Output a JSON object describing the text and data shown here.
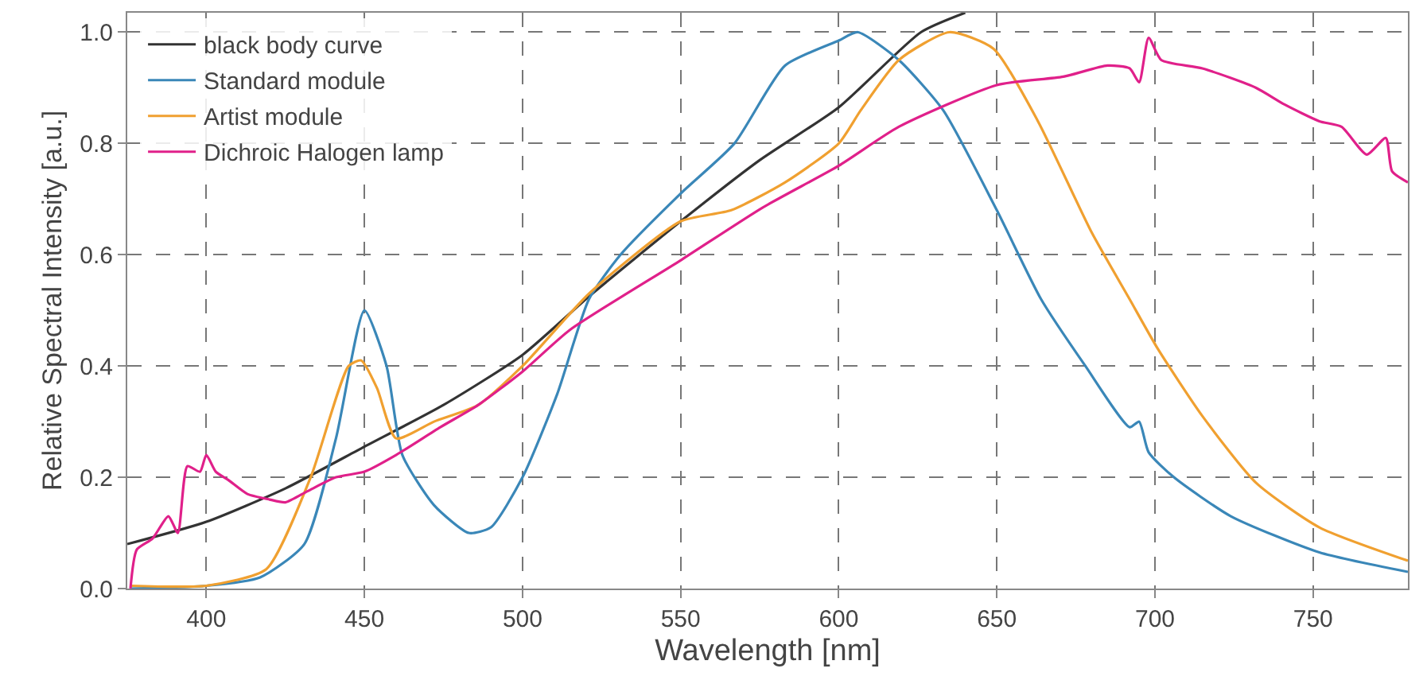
{
  "chart_data": {
    "type": "line",
    "xlabel": "Wavelength [nm]",
    "ylabel": "Relative Spectral Intensity [a.u.]",
    "xlim": [
      375,
      780
    ],
    "xticks": [
      400,
      450,
      500,
      550,
      600,
      650,
      700,
      750
    ],
    "ylim": [
      0,
      1.035
    ],
    "yticks": [
      {
        "value": 0,
        "label": "0.0"
      },
      0.2,
      0.4,
      0.6,
      0.8,
      {
        "value": 1,
        "label": "1.0"
      }
    ],
    "grid": true,
    "legend": "top left",
    "line_style": "solid",
    "marker": "none",
    "series": [
      {
        "name": "black body curve",
        "color": "#333333",
        "x": [
          375,
          400,
          425,
          450,
          475,
          500,
          521,
          550,
          575,
          600,
          626,
          640
        ],
        "values": [
          0.08,
          0.12,
          0.18,
          0.255,
          0.33,
          0.42,
          0.525,
          0.66,
          0.77,
          0.865,
          1.0,
          1.035
        ]
      },
      {
        "name": "Standard module",
        "color": "#3a87b8",
        "x": [
          376,
          400,
          417,
          431,
          441,
          450,
          457,
          462,
          472,
          483,
          490,
          500,
          511,
          521,
          531,
          550,
          567,
          583,
          600,
          606,
          619,
          633,
          650,
          664,
          678,
          692,
          695,
          698,
          706,
          724,
          752,
          780
        ],
        "values": [
          0.0,
          0.005,
          0.02,
          0.08,
          0.27,
          0.5,
          0.4,
          0.24,
          0.15,
          0.1,
          0.11,
          0.2,
          0.35,
          0.52,
          0.6,
          0.71,
          0.8,
          0.94,
          0.985,
          1.0,
          0.95,
          0.86,
          0.68,
          0.52,
          0.4,
          0.29,
          0.3,
          0.245,
          0.2,
          0.13,
          0.065,
          0.03
        ]
      },
      {
        "name": "Artist module",
        "color": "#f0a030",
        "x": [
          376,
          400,
          419,
          433,
          445,
          449,
          454,
          460,
          472,
          486,
          500,
          521,
          550,
          566,
          583,
          600,
          607,
          619,
          635,
          649,
          663,
          680,
          692,
          701,
          715,
          732,
          752,
          780
        ],
        "values": [
          0.005,
          0.005,
          0.035,
          0.2,
          0.4,
          0.41,
          0.36,
          0.27,
          0.3,
          0.33,
          0.4,
          0.53,
          0.66,
          0.68,
          0.73,
          0.8,
          0.86,
          0.95,
          1.0,
          0.97,
          0.84,
          0.64,
          0.52,
          0.43,
          0.31,
          0.19,
          0.11,
          0.05
        ]
      },
      {
        "name": "Dichroic Halogen lamp",
        "color": "#e0208a",
        "x": [
          376,
          378,
          383,
          388,
          391,
          394,
          398,
          400,
          403,
          407,
          413,
          420,
          425,
          432,
          441,
          450,
          460,
          474,
          486,
          500,
          515,
          550,
          576,
          600,
          619,
          650,
          671,
          685,
          692,
          695,
          698,
          702,
          715,
          732,
          741,
          752,
          759,
          767,
          773,
          775,
          780
        ],
        "values": [
          0.0,
          0.07,
          0.09,
          0.13,
          0.1,
          0.22,
          0.21,
          0.24,
          0.21,
          0.195,
          0.17,
          0.16,
          0.155,
          0.175,
          0.2,
          0.21,
          0.24,
          0.29,
          0.33,
          0.39,
          0.465,
          0.59,
          0.685,
          0.76,
          0.83,
          0.905,
          0.92,
          0.94,
          0.935,
          0.91,
          0.99,
          0.95,
          0.935,
          0.9,
          0.87,
          0.84,
          0.83,
          0.78,
          0.81,
          0.75,
          0.73
        ]
      }
    ]
  }
}
